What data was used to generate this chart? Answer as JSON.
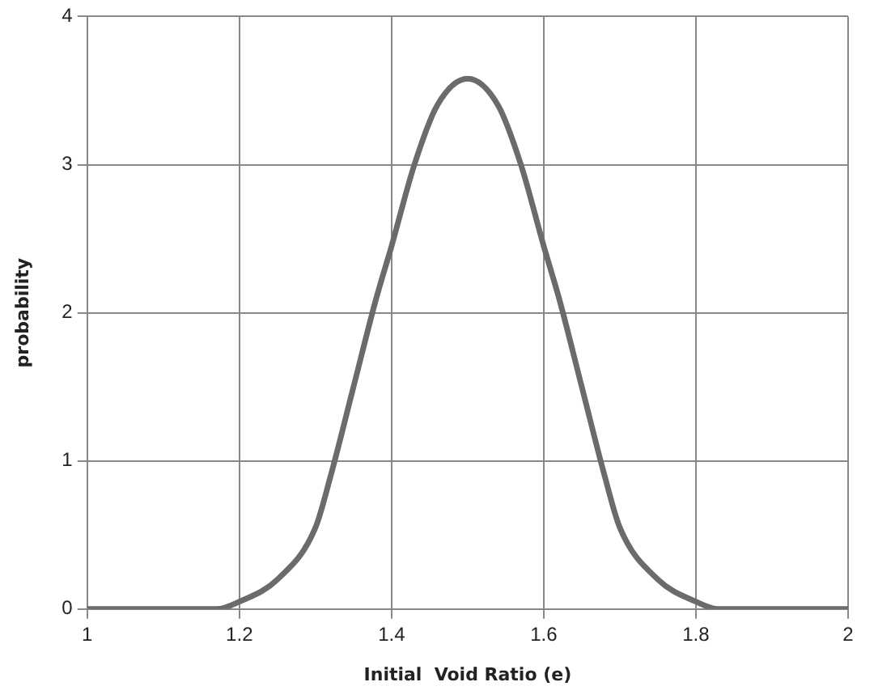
{
  "chart_data": {
    "type": "line",
    "xlabel": "Initial  Void Ratio (e)",
    "ylabel": "probability",
    "x": [
      1,
      1.1,
      1.17,
      1.2,
      1.25,
      1.3,
      1.32,
      1.35,
      1.38,
      1.4,
      1.43,
      1.46,
      1.5,
      1.54,
      1.57,
      1.6,
      1.62,
      1.65,
      1.68,
      1.7,
      1.75,
      1.8,
      1.83,
      1.9,
      2
    ],
    "series": [
      {
        "color": "#6b6b6b",
        "values": [
          0,
          0,
          0,
          0.05,
          0.2,
          0.55,
          0.9,
          1.5,
          2.1,
          2.45,
          3.0,
          3.4,
          3.58,
          3.4,
          3.0,
          2.45,
          2.1,
          1.5,
          0.9,
          0.55,
          0.2,
          0.05,
          0,
          0,
          0
        ]
      }
    ],
    "xlim": [
      1,
      2
    ],
    "xticks": [
      1,
      {
        "value": 1.2,
        "label": "1.2"
      },
      {
        "value": 1.4,
        "label": "1.4"
      },
      {
        "value": 1.6,
        "label": "1.6"
      },
      {
        "value": 1.8,
        "label": "1.8"
      },
      2
    ],
    "ylim": [
      0,
      4
    ],
    "yticks": [
      0,
      1,
      2,
      3,
      4
    ],
    "grid": true,
    "legend": false,
    "marker": "none",
    "line_style": "solid"
  }
}
